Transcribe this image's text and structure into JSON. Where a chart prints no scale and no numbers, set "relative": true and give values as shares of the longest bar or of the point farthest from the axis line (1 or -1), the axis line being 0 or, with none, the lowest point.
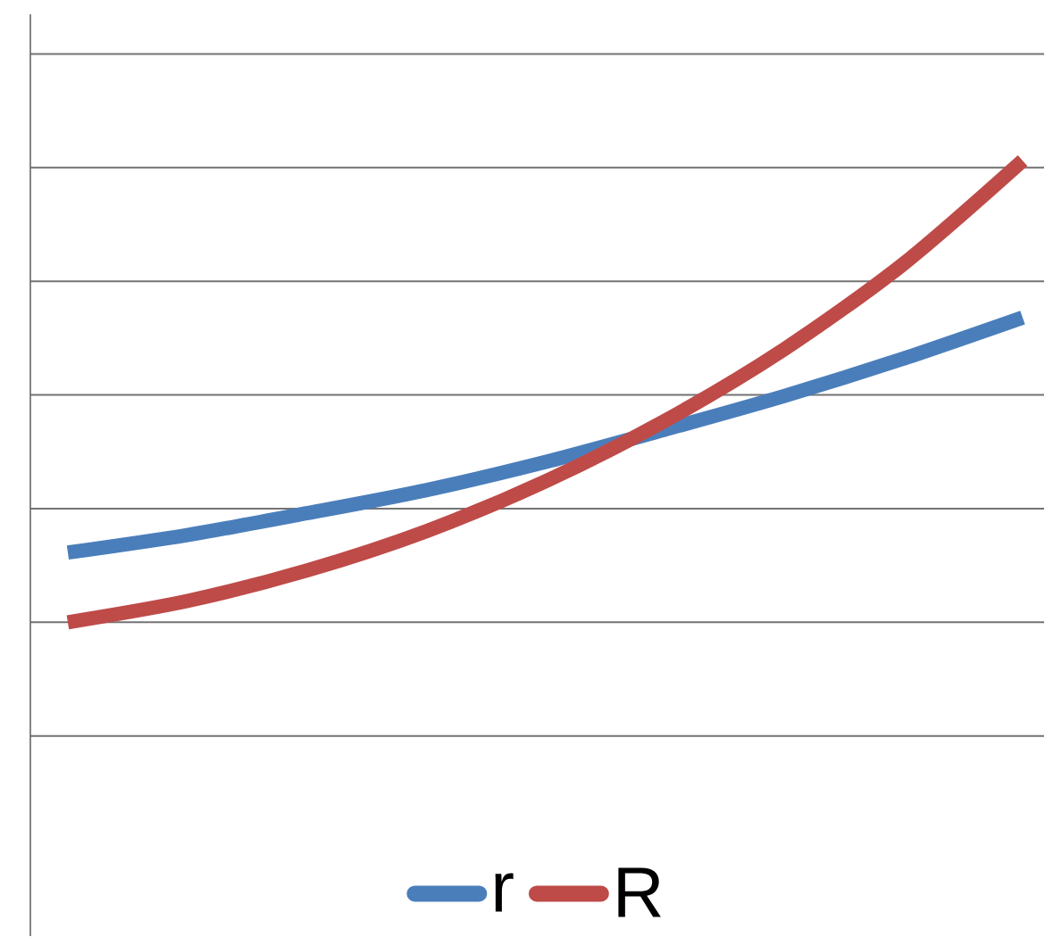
{
  "chart_data": {
    "type": "line",
    "relative": true,
    "grid": "y",
    "legend": "bottom",
    "line_style": "solid",
    "marker": "none",
    "categories": [
      null,
      null,
      null,
      null,
      null,
      null,
      null,
      null,
      null
    ],
    "series": [
      {
        "name": "r",
        "color": "#4a7ebb",
        "values": [
          0.151,
          0.189,
          0.236,
          0.286,
          0.347,
          0.417,
          0.49,
          0.571,
          0.66
        ]
      },
      {
        "name": "R",
        "color": "#be4b48",
        "values": [
          0,
          0.046,
          0.112,
          0.197,
          0.305,
          0.436,
          0.591,
          0.776,
          1
        ]
      }
    ]
  }
}
